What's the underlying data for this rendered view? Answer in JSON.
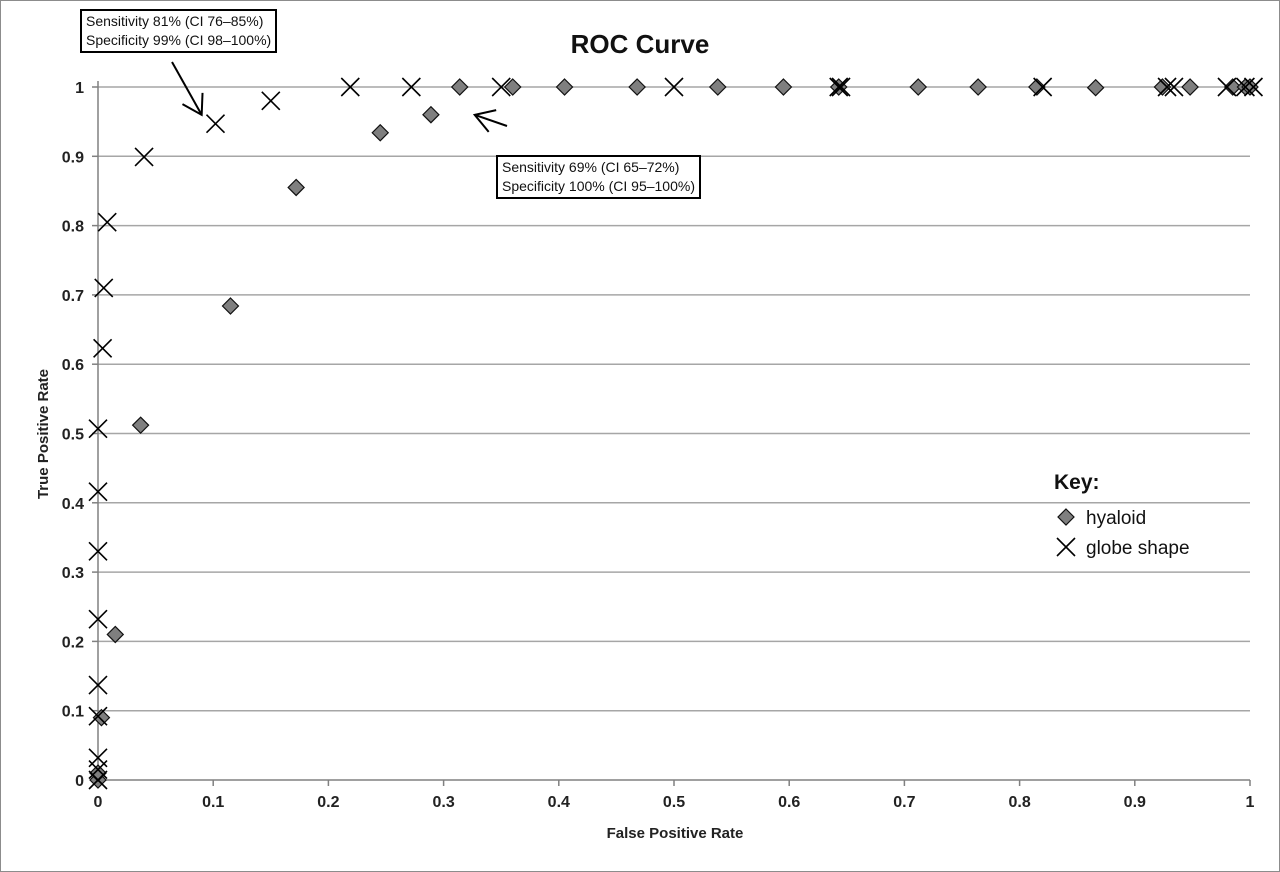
{
  "chart_data": {
    "type": "scatter",
    "title": "ROC Curve",
    "xlabel": "False Positive Rate",
    "ylabel": "True Positive Rate",
    "xlim": [
      0,
      1
    ],
    "ylim": [
      0,
      1
    ],
    "xticks": [
      "0",
      "0.1",
      "0.2",
      "0.3",
      "0.4",
      "0.5",
      "0.6",
      "0.7",
      "0.8",
      "0.9",
      "1"
    ],
    "yticks": [
      "0",
      "0.1",
      "0.2",
      "0.3",
      "0.4",
      "0.5",
      "0.6",
      "0.7",
      "0.8",
      "0.9",
      "1"
    ],
    "grid": "horizontal",
    "legend": {
      "title": "Key:",
      "position": "right"
    },
    "series": [
      {
        "name": "hyaloid",
        "marker": "diamond",
        "color": "#7f7f7f",
        "points": [
          [
            0,
            0
          ],
          [
            0,
            0.01
          ],
          [
            0.003,
            0.09
          ],
          [
            0.015,
            0.21
          ],
          [
            0.037,
            0.512
          ],
          [
            0.115,
            0.684
          ],
          [
            0.172,
            0.855
          ],
          [
            0.245,
            0.934
          ],
          [
            0.289,
            0.96
          ],
          [
            0.314,
            1
          ],
          [
            0.36,
            1
          ],
          [
            0.405,
            1
          ],
          [
            0.468,
            1
          ],
          [
            0.538,
            1
          ],
          [
            0.595,
            1
          ],
          [
            0.643,
            1
          ],
          [
            0.712,
            1
          ],
          [
            0.764,
            1
          ],
          [
            0.815,
            1
          ],
          [
            0.866,
            0.999
          ],
          [
            0.924,
            1
          ],
          [
            0.948,
            1
          ],
          [
            0.985,
            1
          ],
          [
            0.996,
            1
          ],
          [
            1,
            1
          ]
        ]
      },
      {
        "name": "globe shape",
        "marker": "x",
        "color": "#000000",
        "points": [
          [
            0,
            0
          ],
          [
            0,
            0.015
          ],
          [
            0,
            0.032
          ],
          [
            0,
            0.092
          ],
          [
            0,
            0.137
          ],
          [
            0,
            0.232
          ],
          [
            0,
            0.33
          ],
          [
            0,
            0.416
          ],
          [
            0,
            0.507
          ],
          [
            0.004,
            0.623
          ],
          [
            0.005,
            0.71
          ],
          [
            0.008,
            0.805
          ],
          [
            0.04,
            0.899
          ],
          [
            0.102,
            0.947
          ],
          [
            0.15,
            0.98
          ],
          [
            0.219,
            1
          ],
          [
            0.272,
            1
          ],
          [
            0.35,
            1
          ],
          [
            0.5,
            1
          ],
          [
            0.643,
            1
          ],
          [
            0.645,
            1
          ],
          [
            0.82,
            1
          ],
          [
            0.928,
            1
          ],
          [
            0.934,
            1
          ],
          [
            0.98,
            1
          ],
          [
            0.996,
            1
          ],
          [
            1.003,
            1
          ]
        ]
      }
    ],
    "annotations": [
      {
        "line1": "Sensitivity 81% (CI 76–85%)",
        "line2": "Specificity 99% (CI 98–100%)",
        "target": [
          0.09,
          0.98
        ]
      },
      {
        "line1": "Sensitivity 69% (CI 65–72%)",
        "line2": "Specificity 100% (CI 95–100%)",
        "target": [
          0.327,
          0.98
        ]
      }
    ]
  }
}
